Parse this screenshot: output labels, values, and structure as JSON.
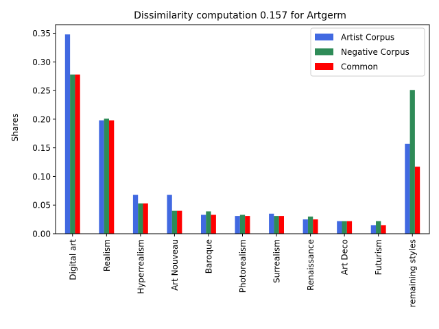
{
  "chart_data": {
    "type": "bar",
    "title": "Dissimilarity computation 0.157 for Artgerm",
    "xlabel": "",
    "ylabel": "Shares",
    "ylim": [
      0,
      0.365
    ],
    "yticks": [
      "0.00",
      "0.05",
      "0.10",
      "0.15",
      "0.20",
      "0.25",
      "0.30",
      "0.35"
    ],
    "categories": [
      "Digital art",
      "Realism",
      "Hyperrealism",
      "Art Nouveau",
      "Baroque",
      "Photorealism",
      "Surrealism",
      "Renaissance",
      "Art Deco",
      "Futurism",
      "remaining styles"
    ],
    "series": [
      {
        "name": "Artist Corpus",
        "color": "#4169e1",
        "values": [
          0.348,
          0.198,
          0.068,
          0.068,
          0.033,
          0.031,
          0.035,
          0.025,
          0.022,
          0.015,
          0.157
        ]
      },
      {
        "name": "Negative Corpus",
        "color": "#2e8b57",
        "values": [
          0.278,
          0.201,
          0.053,
          0.04,
          0.039,
          0.033,
          0.031,
          0.03,
          0.022,
          0.022,
          0.251
        ]
      },
      {
        "name": "Common",
        "color": "#ff0000",
        "values": [
          0.278,
          0.198,
          0.053,
          0.04,
          0.033,
          0.031,
          0.031,
          0.025,
          0.022,
          0.015,
          0.117
        ]
      }
    ],
    "legend_position": "top-right",
    "grid": false
  }
}
